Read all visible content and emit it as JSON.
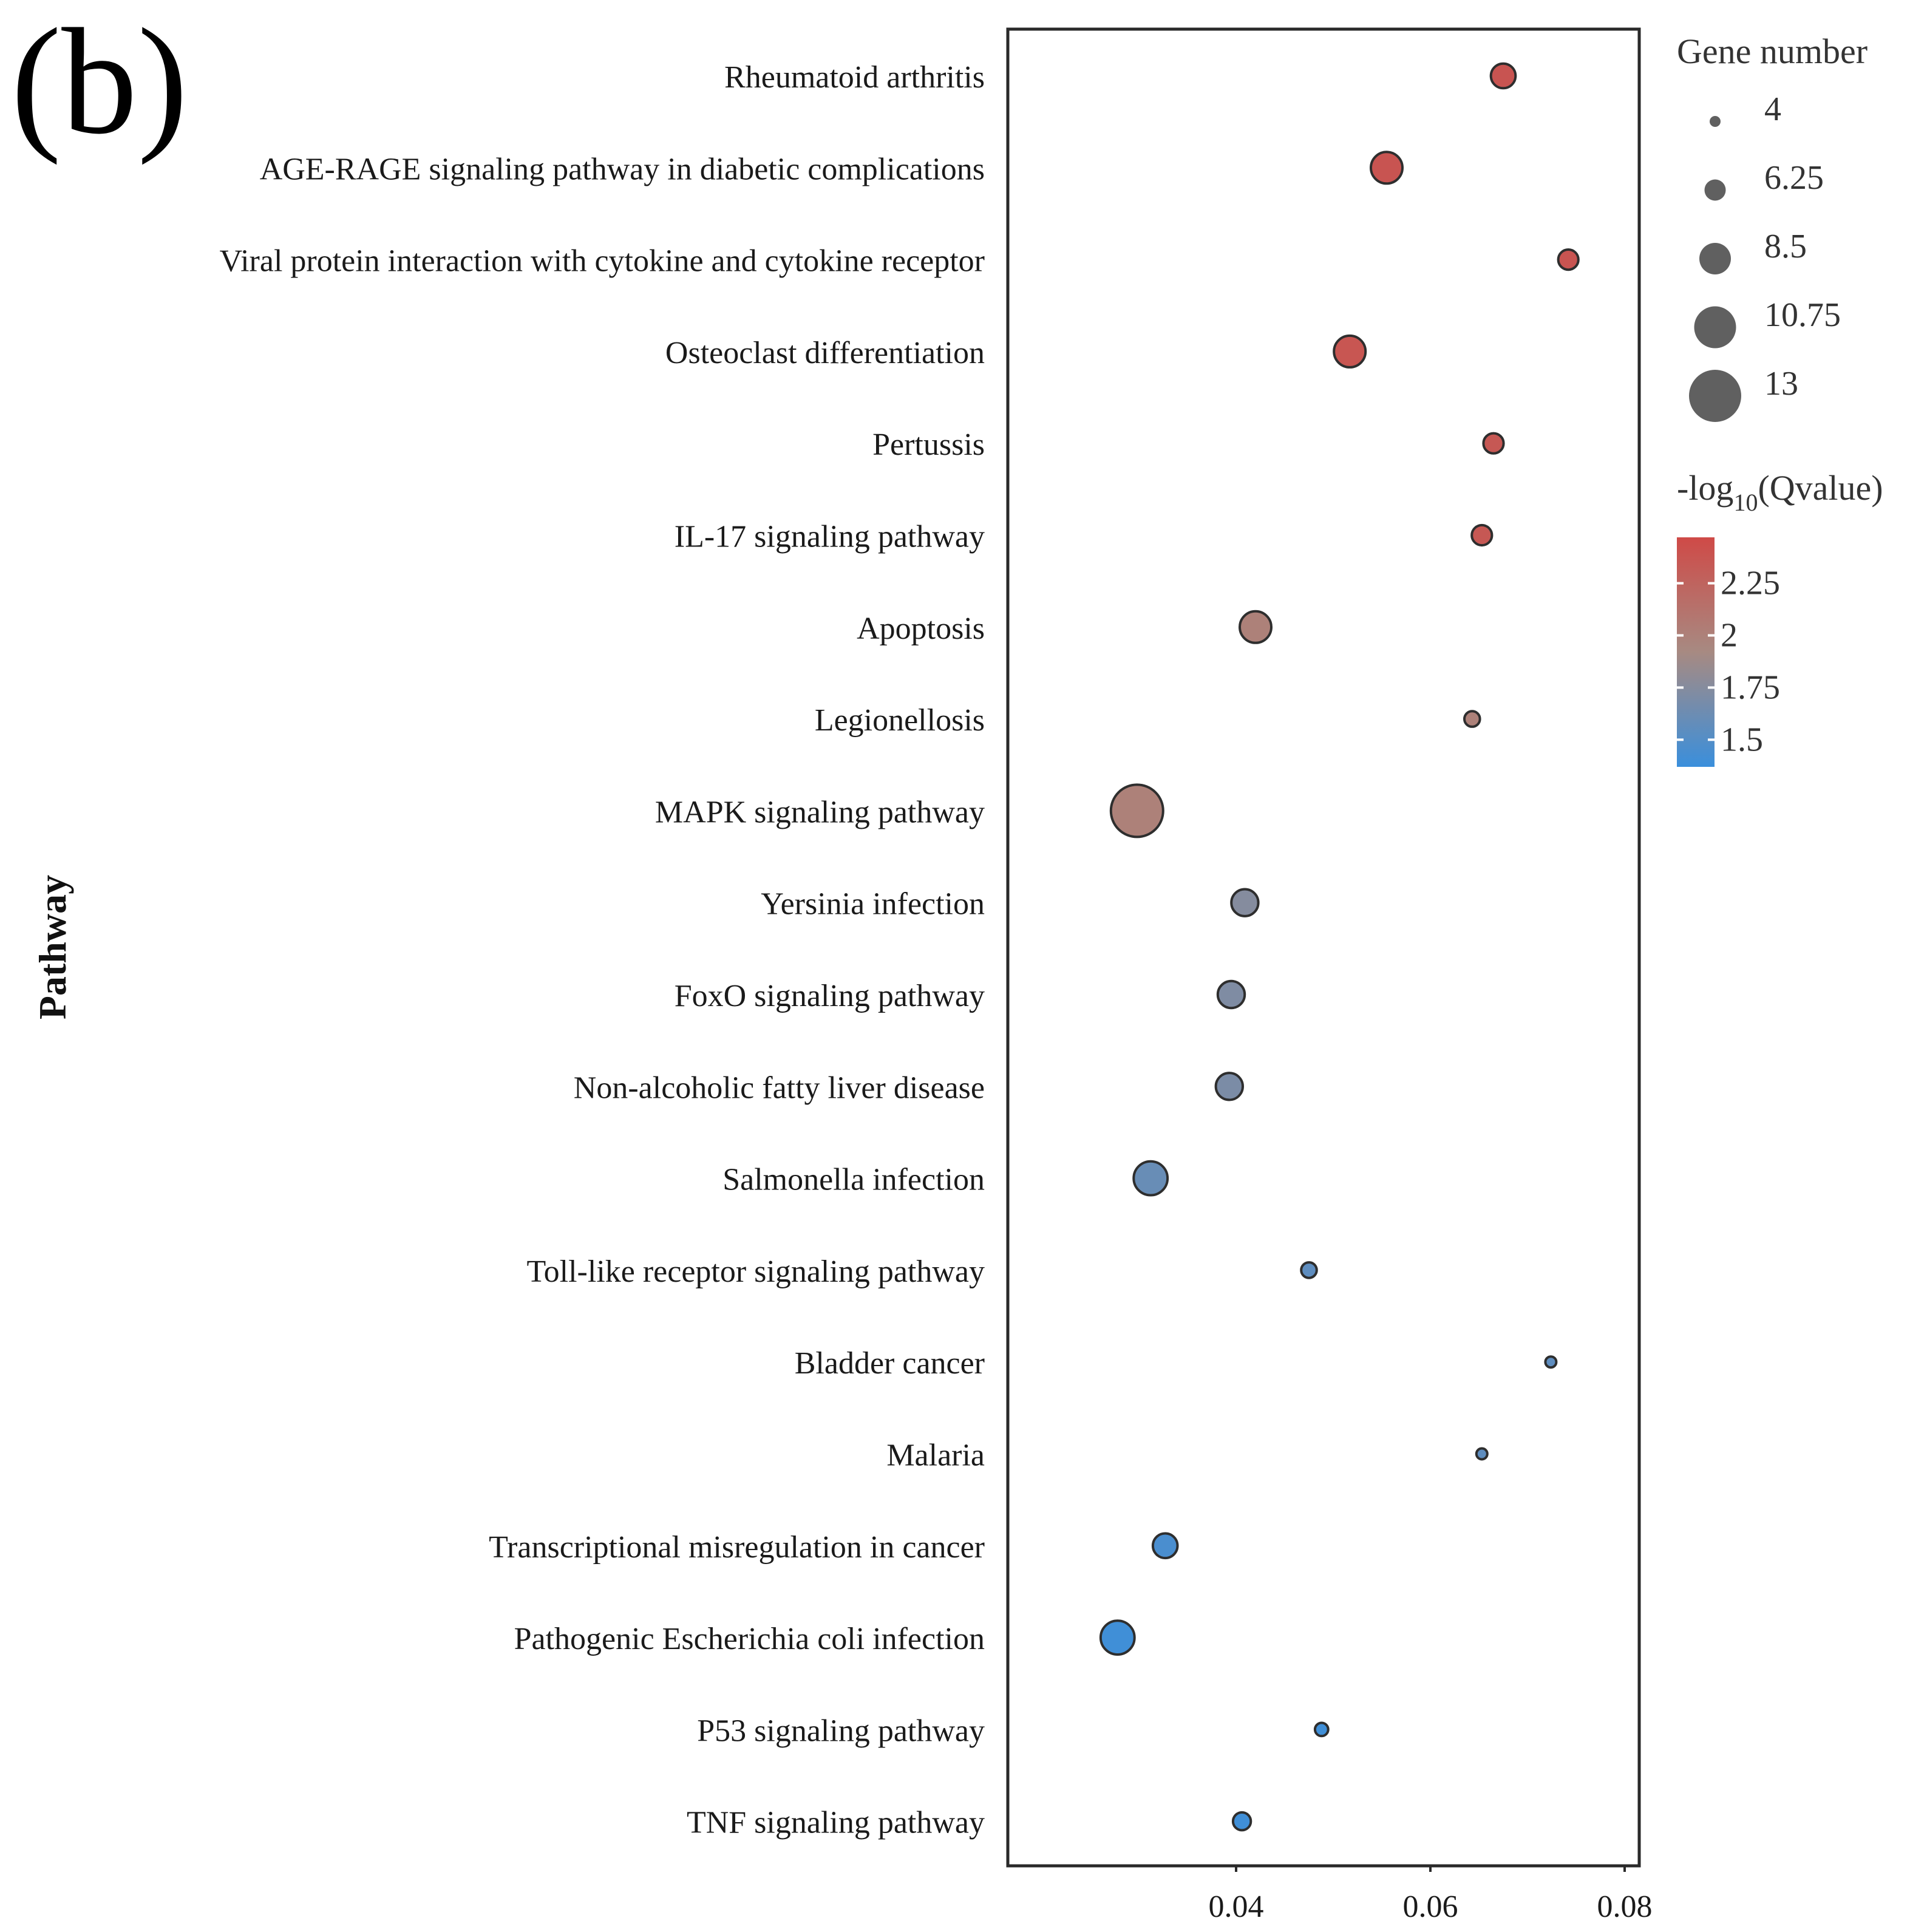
{
  "panel_label": "(b)",
  "chart_data": {
    "type": "scatter",
    "title": "",
    "xlabel": "",
    "ylabel": "Pathway",
    "xlim": [
      0.0165,
      0.0815
    ],
    "xticks": [
      0.04,
      0.06,
      0.08
    ],
    "xtick_labels": [
      "0.04",
      "0.06",
      "0.08"
    ],
    "grid": false,
    "categories": [
      "Rheumatoid arthritis",
      "AGE-RAGE signaling pathway in diabetic complications",
      "Viral protein interaction with cytokine and cytokine receptor",
      "Osteoclast differentiation",
      "Pertussis",
      "IL-17 signaling pathway",
      "Apoptosis",
      "Legionellosis",
      "MAPK signaling pathway",
      "Yersinia infection",
      "FoxO signaling pathway",
      "Non-alcoholic fatty liver disease",
      "Salmonella infection",
      "Toll-like receptor signaling pathway",
      "Bladder cancer",
      "Malaria",
      "Transcriptional misregulation in cancer",
      "Pathogenic Escherichia coli infection",
      "P53 signaling pathway",
      "TNF signaling pathway"
    ],
    "points": [
      {
        "pathway": "Rheumatoid arthritis",
        "x": 0.0675,
        "gene_number": 7,
        "neg_log10_q": 2.38
      },
      {
        "pathway": "AGE-RAGE signaling pathway in diabetic complications",
        "x": 0.0555,
        "gene_number": 8.5,
        "neg_log10_q": 2.38
      },
      {
        "pathway": "Viral protein interaction with cytokine and cytokine receptor",
        "x": 0.0742,
        "gene_number": 6,
        "neg_log10_q": 2.38
      },
      {
        "pathway": "Osteoclast differentiation",
        "x": 0.0517,
        "gene_number": 8.5,
        "neg_log10_q": 2.37
      },
      {
        "pathway": "Pertussis",
        "x": 0.0665,
        "gene_number": 6,
        "neg_log10_q": 2.35
      },
      {
        "pathway": "IL-17 signaling pathway",
        "x": 0.0653,
        "gene_number": 6,
        "neg_log10_q": 2.35
      },
      {
        "pathway": "Apoptosis",
        "x": 0.042,
        "gene_number": 8.5,
        "neg_log10_q": 2.0
      },
      {
        "pathway": "Legionellosis",
        "x": 0.0643,
        "gene_number": 5,
        "neg_log10_q": 2.0
      },
      {
        "pathway": "MAPK signaling pathway",
        "x": 0.0298,
        "gene_number": 13,
        "neg_log10_q": 2.0
      },
      {
        "pathway": "Yersinia infection",
        "x": 0.0409,
        "gene_number": 7.5,
        "neg_log10_q": 1.75
      },
      {
        "pathway": "FoxO signaling pathway",
        "x": 0.0395,
        "gene_number": 7.5,
        "neg_log10_q": 1.72
      },
      {
        "pathway": "Non-alcoholic fatty liver disease",
        "x": 0.0393,
        "gene_number": 7.5,
        "neg_log10_q": 1.7
      },
      {
        "pathway": "Salmonella infection",
        "x": 0.0312,
        "gene_number": 9,
        "neg_log10_q": 1.6
      },
      {
        "pathway": "Toll-like receptor signaling pathway",
        "x": 0.0475,
        "gene_number": 5,
        "neg_log10_q": 1.55
      },
      {
        "pathway": "Bladder cancer",
        "x": 0.0724,
        "gene_number": 4,
        "neg_log10_q": 1.55
      },
      {
        "pathway": "Malaria",
        "x": 0.0653,
        "gene_number": 4,
        "neg_log10_q": 1.55
      },
      {
        "pathway": "Transcriptional misregulation in cancer",
        "x": 0.0327,
        "gene_number": 7,
        "neg_log10_q": 1.45
      },
      {
        "pathway": "Pathogenic Escherichia coli infection",
        "x": 0.0278,
        "gene_number": 9,
        "neg_log10_q": 1.4
      },
      {
        "pathway": "P53 signaling pathway",
        "x": 0.0488,
        "gene_number": 4.5,
        "neg_log10_q": 1.4
      },
      {
        "pathway": "TNF signaling pathway",
        "x": 0.0406,
        "gene_number": 5.5,
        "neg_log10_q": 1.4
      }
    ],
    "size_legend": {
      "title": "Gene number",
      "values": [
        4,
        6.25,
        8.5,
        10.75,
        13
      ],
      "labels": [
        "4",
        "6.25",
        "8.5",
        "10.75",
        "13"
      ]
    },
    "color_legend": {
      "title_prefix": "-log",
      "title_sub": "10",
      "title_suffix": "(Qvalue)",
      "range": [
        1.37,
        2.47
      ],
      "ticks": [
        2.25,
        2,
        1.75,
        1.5
      ],
      "tick_labels": [
        "2.25",
        "2",
        "1.75",
        "1.5"
      ],
      "low_color": "#3a8fdc",
      "mid_color": "#a78a82",
      "high_color": "#cf4a47"
    },
    "marker_edge_color": "#2e2e2e",
    "frame_color": "#2a2a2a"
  }
}
